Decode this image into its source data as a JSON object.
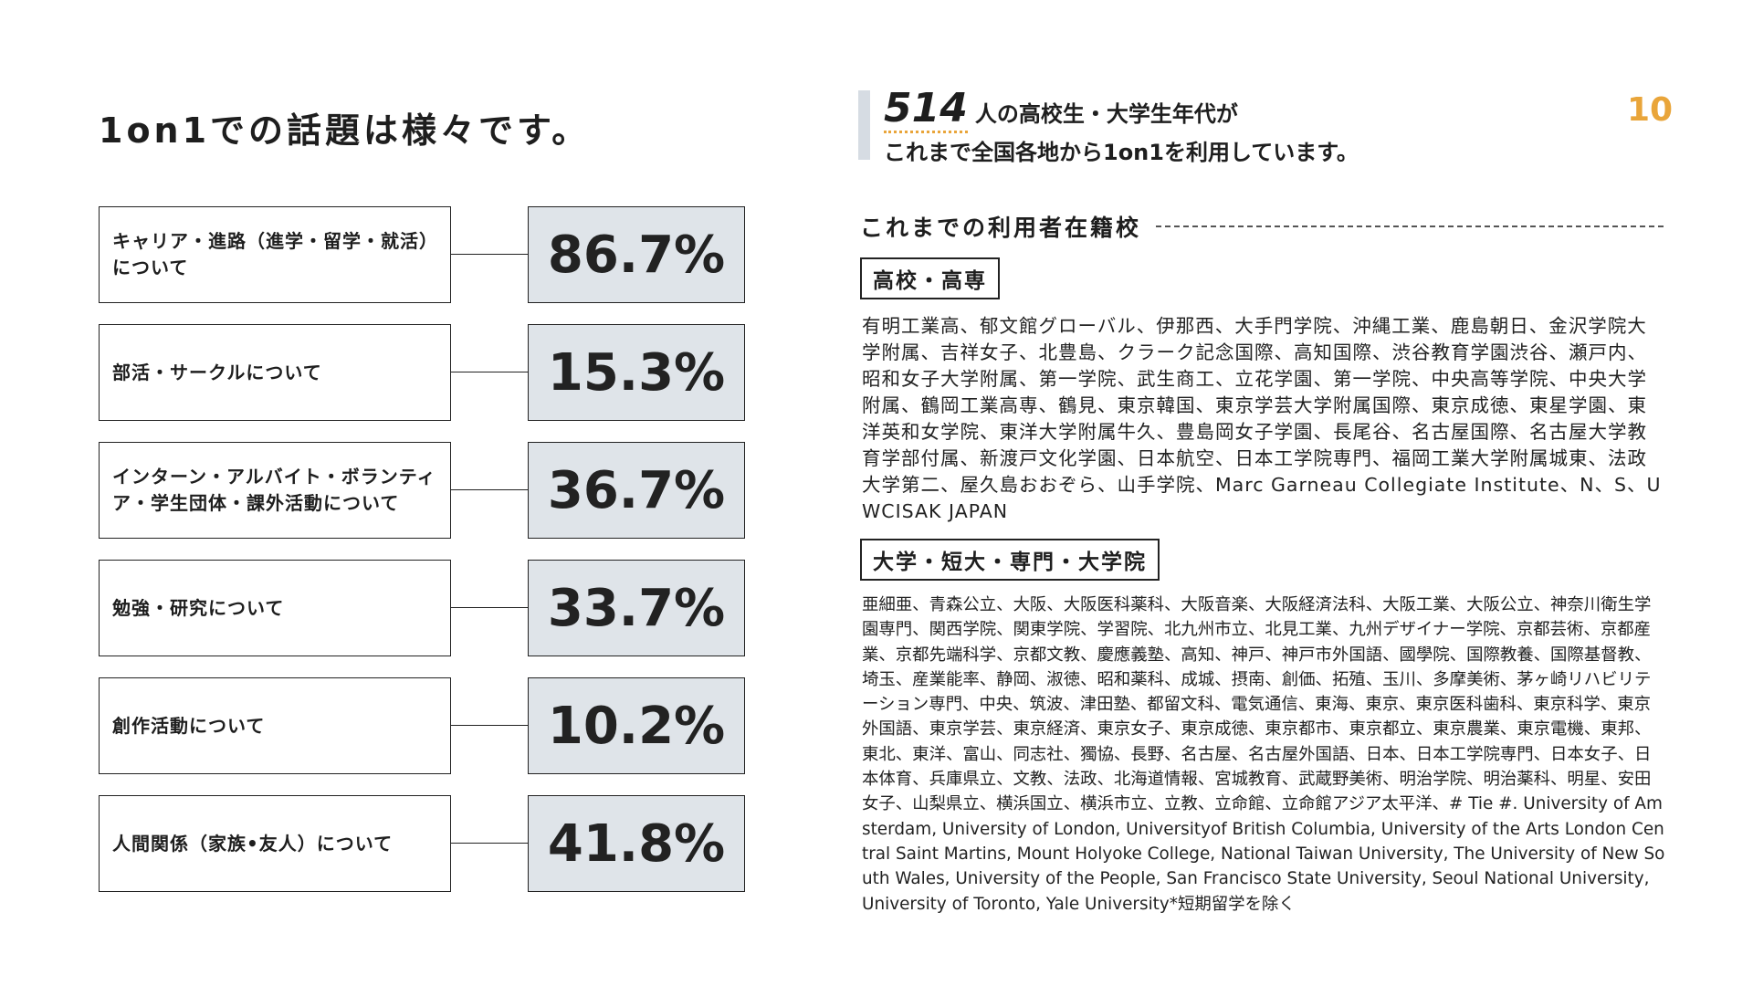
{
  "title": "1on1での話題は様々です。",
  "topics": [
    {
      "label": "キャリア・進路（進学・留学・就活）について",
      "value": "86.7%"
    },
    {
      "label": "部活・サークルについて",
      "value": "15.3%"
    },
    {
      "label": "インターン・アルバイト・ボランティア・学生団体・課外活動について",
      "value": "36.7%"
    },
    {
      "label": "勉強・研究について",
      "value": "33.7%"
    },
    {
      "label": "創作活動について",
      "value": "10.2%"
    },
    {
      "label": "人間関係（家族•友人）について",
      "value": "41.8%"
    }
  ],
  "summary": {
    "count": "514",
    "line1": "人の高校生・大学生年代が",
    "line2": "これまで全国各地から1on1を利用しています。"
  },
  "page_number": "10",
  "schools_heading": "これまでの利用者在籍校",
  "high_school": {
    "label": "高校・高専",
    "text": "有明工業高、郁文館グローバル、伊那西、大手門学院、沖縄工業、鹿島朝日、金沢学院大学附属、吉祥女子、北豊島、クラーク記念国際、高知国際、渋谷教育学園渋谷、瀬戸内、昭和女子大学附属、第一学院、武生商工、立花学園、第一学院、中央高等学院、中央大学附属、鶴岡工業高専、鶴見、東京韓国、東京学芸大学附属国際、東京成徳、東星学園、東洋英和女学院、東洋大学附属牛久、豊島岡女子学園、長尾谷、名古屋国際、名古屋大学教育学部付属、新渡戸文化学園、日本航空、日本工学院専門、福岡工業大学附属城東、法政大学第二、屋久島おおぞら、山手学院、Marc Garneau Collegiate Institute、N、S、UWCISAK JAPAN"
  },
  "university": {
    "label": "大学・短大・専門・大学院",
    "text": "亜細亜、青森公立、大阪、大阪医科薬科、大阪音楽、大阪経済法科、大阪工業、大阪公立、神奈川衛生学園専門、関西学院、関東学院、学習院、北九州市立、北見工業、九州デザイナー学院、京都芸術、京都産業、京都先端科学、京都文教、慶應義塾、高知、神戸、神戸市外国語、國學院、国際教養、国際基督教、埼玉、産業能率、静岡、淑徳、昭和薬科、成城、摂南、創価、拓殖、玉川、多摩美術、茅ヶ崎リハビリテーション専門、中央、筑波、津田塾、都留文科、電気通信、東海、東京、東京医科歯科、東京科学、東京外国語、東京学芸、東京経済、東京女子、東京成徳、東京都市、東京都立、東京農業、東京電機、東邦、東北、東洋、富山、同志社、獨協、長野、名古屋、名古屋外国語、日本、日本工学院専門、日本女子、日本体育、兵庫県立、文教、法政、北海道情報、宮城教育、武蔵野美術、明治学院、明治薬科、明星、安田女子、山梨県立、横浜国立、横浜市立、立教、立命館、立命館アジア太平洋、# Tie #. University of Amsterdam, University of London, Universityof British Columbia, University of the Arts London Central Saint Martins, Mount Holyoke College, National Taiwan University, The University of New South Wales, University of the People, San Francisco State University, Seoul National University, University of Toronto, Yale University*短期留学を除く"
  }
}
